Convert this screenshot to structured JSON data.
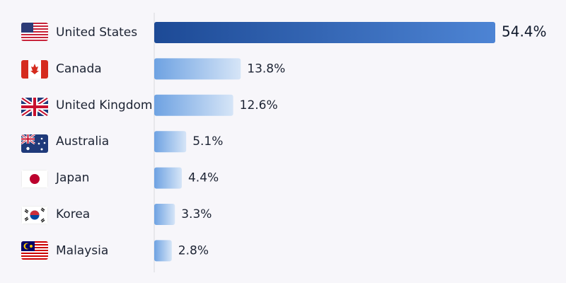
{
  "chart_data": {
    "type": "bar",
    "categories": [
      "United States",
      "Canada",
      "United Kingdom",
      "Australia",
      "Japan",
      "Korea",
      "Malaysia"
    ],
    "values": [
      54.4,
      13.8,
      12.6,
      5.1,
      4.4,
      3.3,
      2.8
    ],
    "value_labels": [
      "54.4%",
      "13.8%",
      "12.6%",
      "5.1%",
      "4.4%",
      "3.3%",
      "2.8%"
    ]
  }
}
